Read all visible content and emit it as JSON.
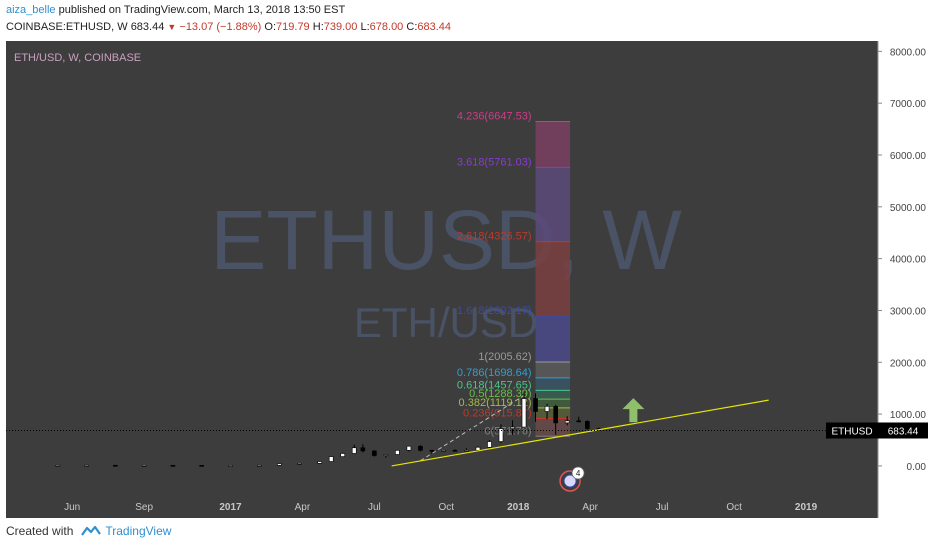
{
  "header": {
    "author": "aiza_belle",
    "published_text": "published on TradingView.com, March 13, 2018 13:50 EST",
    "symbol": "COINBASE:ETHUSD, W",
    "last": "683.44",
    "change_arrow": "▼",
    "change": "−13.07 (−1.88%)",
    "o_label": "O:",
    "o": "719.79",
    "h_label": "H:",
    "h": "739.00",
    "l_label": "L:",
    "l": "678.00",
    "c_label": "C:",
    "c": "683.44"
  },
  "footer": {
    "created_with": "Created with",
    "brand": "TradingView"
  },
  "colors": {
    "background": "#3d3d3d",
    "price_axis_bg": "#ffffff",
    "trendline": "#e6e600",
    "price_line": "#000000",
    "arrow": "#8fbf6a",
    "watermark": "#4a5366"
  },
  "chart_data": {
    "type": "candlestick",
    "title": "ETH/USD, W, COINBASE",
    "watermark_main": "ETHUSD, W",
    "watermark_sub": "ETH/USD",
    "ylim": [
      -600,
      8200
    ],
    "y_ticks": [
      "0.00",
      "1000.00",
      "2000.00",
      "3000.00",
      "4000.00",
      "5000.00",
      "6000.00",
      "7000.00",
      "8000.00"
    ],
    "x_ticks": [
      "Jun",
      "Sep",
      "2017",
      "Apr",
      "Jul",
      "Oct",
      "2018",
      "Apr",
      "Jul",
      "Oct",
      "2019"
    ],
    "current_price_label": "ETHUSD",
    "current_price": "683.44",
    "current_price_value": 683.44,
    "candles": [
      {
        "t": 2016.4,
        "o": 12,
        "h": 14,
        "l": 10,
        "c": 13
      },
      {
        "t": 2016.5,
        "o": 13,
        "h": 20,
        "l": 11,
        "c": 14
      },
      {
        "t": 2016.6,
        "o": 13,
        "h": 14,
        "l": 7,
        "c": 10
      },
      {
        "t": 2016.7,
        "o": 12,
        "h": 14,
        "l": 11,
        "c": 12
      },
      {
        "t": 2016.8,
        "o": 11,
        "h": 12,
        "l": 9,
        "c": 10
      },
      {
        "t": 2016.9,
        "o": 10,
        "h": 11,
        "l": 7,
        "c": 8
      },
      {
        "t": 2017.0,
        "o": 8,
        "h": 10,
        "l": 7,
        "c": 9
      },
      {
        "t": 2017.1,
        "o": 10,
        "h": 14,
        "l": 9,
        "c": 13
      },
      {
        "t": 2017.17,
        "o": 13,
        "h": 50,
        "l": 12,
        "c": 45
      },
      {
        "t": 2017.24,
        "o": 45,
        "h": 55,
        "l": 40,
        "c": 50
      },
      {
        "t": 2017.31,
        "o": 50,
        "h": 95,
        "l": 45,
        "c": 85
      },
      {
        "t": 2017.35,
        "o": 85,
        "h": 190,
        "l": 80,
        "c": 180
      },
      {
        "t": 2017.39,
        "o": 180,
        "h": 260,
        "l": 170,
        "c": 240
      },
      {
        "t": 2017.43,
        "o": 240,
        "h": 410,
        "l": 230,
        "c": 350
      },
      {
        "t": 2017.46,
        "o": 350,
        "h": 420,
        "l": 260,
        "c": 290
      },
      {
        "t": 2017.5,
        "o": 290,
        "h": 300,
        "l": 180,
        "c": 200
      },
      {
        "t": 2017.54,
        "o": 200,
        "h": 230,
        "l": 160,
        "c": 220
      },
      {
        "t": 2017.58,
        "o": 220,
        "h": 310,
        "l": 210,
        "c": 300
      },
      {
        "t": 2017.62,
        "o": 300,
        "h": 390,
        "l": 280,
        "c": 380
      },
      {
        "t": 2017.66,
        "o": 380,
        "h": 400,
        "l": 280,
        "c": 300
      },
      {
        "t": 2017.7,
        "o": 300,
        "h": 310,
        "l": 230,
        "c": 290
      },
      {
        "t": 2017.74,
        "o": 290,
        "h": 310,
        "l": 280,
        "c": 300
      },
      {
        "t": 2017.78,
        "o": 300,
        "h": 320,
        "l": 280,
        "c": 290
      },
      {
        "t": 2017.82,
        "o": 290,
        "h": 340,
        "l": 280,
        "c": 300
      },
      {
        "t": 2017.86,
        "o": 300,
        "h": 380,
        "l": 290,
        "c": 360
      },
      {
        "t": 2017.9,
        "o": 360,
        "h": 500,
        "l": 350,
        "c": 470
      },
      {
        "t": 2017.94,
        "o": 470,
        "h": 800,
        "l": 440,
        "c": 720
      },
      {
        "t": 2017.98,
        "o": 720,
        "h": 880,
        "l": 600,
        "c": 750
      },
      {
        "t": 2018.02,
        "o": 750,
        "h": 1420,
        "l": 740,
        "c": 1300
      },
      {
        "t": 2018.06,
        "o": 1300,
        "h": 1400,
        "l": 850,
        "c": 1050
      },
      {
        "t": 2018.1,
        "o": 1050,
        "h": 1200,
        "l": 900,
        "c": 1150
      },
      {
        "t": 2018.13,
        "o": 1150,
        "h": 1180,
        "l": 600,
        "c": 830
      },
      {
        "t": 2018.17,
        "o": 830,
        "h": 960,
        "l": 780,
        "c": 870
      },
      {
        "t": 2018.21,
        "o": 870,
        "h": 950,
        "l": 840,
        "c": 860
      },
      {
        "t": 2018.24,
        "o": 860,
        "h": 880,
        "l": 700,
        "c": 720
      },
      {
        "t": 2018.28,
        "o": 719.79,
        "h": 739,
        "l": 678,
        "c": 683.44
      }
    ],
    "trendline": {
      "x1": 2017.56,
      "y1": 0,
      "x2": 2018.87,
      "y2": 1270
    },
    "dashed_trend": {
      "x1": 2017.66,
      "y1": 100,
      "x2": 2018.02,
      "y2": 1360
    },
    "fib": {
      "x1": 2018.06,
      "x2": 2018.18,
      "levels": [
        {
          "label": "0(571.76)",
          "value": 571.76,
          "color": "#808080",
          "fill": "#5a5a5a"
        },
        {
          "label": "0.236(915.87)",
          "value": 915.87,
          "color": "#c0392b",
          "fill": "#6a4a4a"
        },
        {
          "label": "0.382(1119.12)",
          "value": 1119.12,
          "color": "#a8b84a",
          "fill": "#55603a"
        },
        {
          "label": "0.5(1288.39)",
          "value": 1288.39,
          "color": "#6cbf4a",
          "fill": "#3e5f3a"
        },
        {
          "label": "0.618(1457.65)",
          "value": 1457.65,
          "color": "#4ac68a",
          "fill": "#3a5f55"
        },
        {
          "label": "0.786(1698.64)",
          "value": 1698.64,
          "color": "#2f9fd1",
          "fill": "#3a5566"
        },
        {
          "label": "1(2005.62)",
          "value": 2005.62,
          "color": "#9a9a9a",
          "fill": "#5a5a5a"
        },
        {
          "label": "1.618(2892.17)",
          "value": 2892.17,
          "color": "#3a4ab0",
          "fill": "#4a4a8a"
        },
        {
          "label": "2.618(4326.57)",
          "value": 4326.57,
          "color": "#c0392b",
          "fill": "#7a4040"
        },
        {
          "label": "3.618(5761.03)",
          "value": 5761.03,
          "color": "#8a3ad1",
          "fill": "#5a4a7a"
        },
        {
          "label": "4.236(6647.53)",
          "value": 6647.53,
          "color": "#d13a8a",
          "fill": "#7a4060"
        }
      ]
    },
    "up_arrow": {
      "t": 2018.4,
      "v": 1000
    },
    "event_badge": {
      "t": 2018.18,
      "count": "4"
    }
  }
}
